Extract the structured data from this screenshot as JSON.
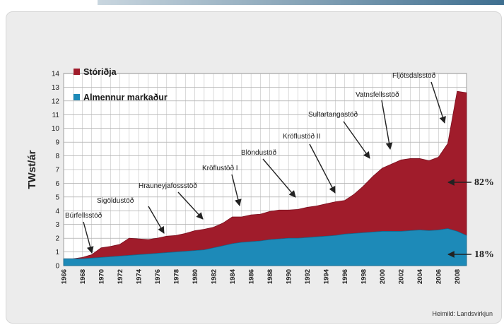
{
  "chart_data": {
    "type": "area",
    "ylabel": "TWst/ár",
    "ylim": [
      0,
      14
    ],
    "yticks": [
      "0",
      "1",
      "2",
      "3",
      "4",
      "5",
      "6",
      "7",
      "8",
      "9",
      "10",
      "11",
      "12",
      "13",
      "14"
    ],
    "xlim": [
      1966,
      2009
    ],
    "xticks": [
      "1966",
      "1968",
      "1970",
      "1972",
      "1974",
      "1976",
      "1978",
      "1980",
      "1982",
      "1984",
      "1986",
      "1988",
      "1990",
      "1992",
      "1994",
      "1996",
      "1998",
      "2000",
      "2002",
      "2004",
      "2006",
      "2008"
    ],
    "grid": true,
    "stacked": true,
    "x": [
      1966,
      1967,
      1968,
      1969,
      1970,
      1971,
      1972,
      1973,
      1974,
      1975,
      1976,
      1977,
      1978,
      1979,
      1980,
      1981,
      1982,
      1983,
      1984,
      1985,
      1986,
      1987,
      1988,
      1989,
      1990,
      1991,
      1992,
      1993,
      1994,
      1995,
      1996,
      1997,
      1998,
      1999,
      2000,
      2001,
      2002,
      2003,
      2004,
      2005,
      2006,
      2007,
      2008,
      2009
    ],
    "series": [
      {
        "name": "Almennur markaður",
        "color": "#1d8ab8",
        "values": [
          0.5,
          0.5,
          0.5,
          0.55,
          0.6,
          0.65,
          0.7,
          0.75,
          0.8,
          0.85,
          0.9,
          0.95,
          1.0,
          1.05,
          1.1,
          1.15,
          1.3,
          1.45,
          1.6,
          1.7,
          1.75,
          1.8,
          1.9,
          1.95,
          2.0,
          2.0,
          2.05,
          2.1,
          2.15,
          2.2,
          2.3,
          2.35,
          2.4,
          2.45,
          2.5,
          2.5,
          2.5,
          2.55,
          2.6,
          2.55,
          2.6,
          2.7,
          2.5,
          2.2
        ]
      },
      {
        "name": "Stóriðja",
        "color": "#a01c2b",
        "values": [
          0.0,
          0.0,
          0.1,
          0.25,
          0.7,
          0.75,
          0.85,
          1.25,
          1.15,
          1.05,
          1.1,
          1.2,
          1.2,
          1.3,
          1.45,
          1.5,
          1.5,
          1.65,
          1.95,
          1.85,
          1.95,
          1.95,
          2.05,
          2.1,
          2.05,
          2.1,
          2.2,
          2.25,
          2.35,
          2.45,
          2.45,
          2.85,
          3.4,
          4.05,
          4.6,
          4.9,
          5.2,
          5.25,
          5.2,
          5.1,
          5.3,
          6.2,
          10.2,
          10.4
        ]
      }
    ],
    "legend": {
      "placement": "top-left",
      "entries": [
        {
          "label": "Stóriðja",
          "color": "#a01c2b"
        },
        {
          "label": "Almennur markaður",
          "color": "#1d8ab8"
        }
      ]
    },
    "annotations": [
      {
        "label": "Búrfellsstöð",
        "year": 1969
      },
      {
        "label": "Sigöldustöð",
        "year": 1977
      },
      {
        "label": "Hrauneyjafossstöð",
        "year": 1981
      },
      {
        "label": "Kröflustöð I",
        "year": 1985
      },
      {
        "label": "Blöndustöð",
        "year": 1991
      },
      {
        "label": "Kröflustöð II",
        "year": 1995
      },
      {
        "label": "Sultartangastöð",
        "year": 1999
      },
      {
        "label": "Vatnsfellsstöð",
        "year": 2001
      },
      {
        "label": "Fljótsdalsstöð",
        "year": 2007
      }
    ],
    "share_labels": [
      {
        "label": "82%",
        "series": "Stóriðja"
      },
      {
        "label": "18%",
        "series": "Almennur markaður"
      }
    ],
    "source": "Heimild: Landsvirkjun"
  }
}
